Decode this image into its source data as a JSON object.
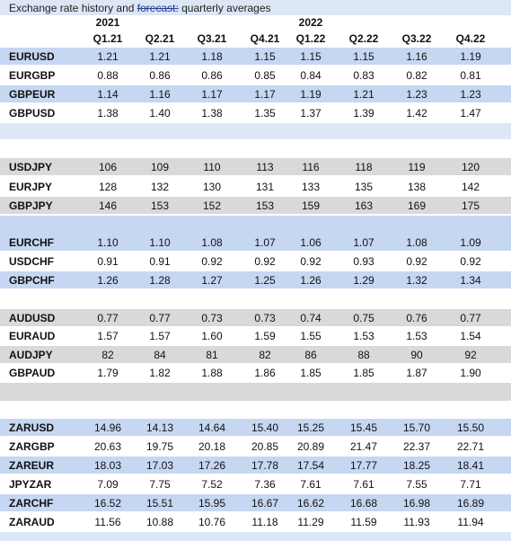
{
  "title": {
    "pre": "Exchange rate history and ",
    "strike": "forecast:",
    "post": " quarterly averages"
  },
  "header": {
    "year_2021": "2021",
    "year_2022": "2022",
    "quarters": [
      "Q1.21",
      "Q2.21",
      "Q3.21",
      "Q4.21",
      "Q1.22",
      "Q2.22",
      "Q3.22",
      "Q4.22"
    ]
  },
  "rows": [
    {
      "pair": "EURUSD",
      "values": [
        "1.21",
        "1.21",
        "1.18",
        "1.15",
        "1.15",
        "1.15",
        "1.16",
        "1.19"
      ]
    },
    {
      "pair": "EURGBP",
      "values": [
        "0.88",
        "0.86",
        "0.86",
        "0.85",
        "0.84",
        "0.83",
        "0.82",
        "0.81"
      ]
    },
    {
      "pair": "GBPEUR",
      "values": [
        "1.14",
        "1.16",
        "1.17",
        "1.17",
        "1.19",
        "1.21",
        "1.23",
        "1.23"
      ]
    },
    {
      "pair": "GBPUSD",
      "values": [
        "1.38",
        "1.40",
        "1.38",
        "1.35",
        "1.37",
        "1.39",
        "1.42",
        "1.47"
      ]
    },
    {
      "pair": "USDJPY",
      "values": [
        "106",
        "109",
        "110",
        "113",
        "116",
        "118",
        "119",
        "120"
      ]
    },
    {
      "pair": "EURJPY",
      "values": [
        "128",
        "132",
        "130",
        "131",
        "133",
        "135",
        "138",
        "142"
      ]
    },
    {
      "pair": "GBPJPY",
      "values": [
        "146",
        "153",
        "152",
        "153",
        "159",
        "163",
        "169",
        "175"
      ]
    },
    {
      "pair": "EURCHF",
      "values": [
        "1.10",
        "1.10",
        "1.08",
        "1.07",
        "1.06",
        "1.07",
        "1.08",
        "1.09"
      ]
    },
    {
      "pair": "USDCHF",
      "values": [
        "0.91",
        "0.91",
        "0.92",
        "0.92",
        "0.92",
        "0.93",
        "0.92",
        "0.92"
      ]
    },
    {
      "pair": "GBPCHF",
      "values": [
        "1.26",
        "1.28",
        "1.27",
        "1.25",
        "1.26",
        "1.29",
        "1.32",
        "1.34"
      ]
    },
    {
      "pair": "AUDUSD",
      "values": [
        "0.77",
        "0.77",
        "0.73",
        "0.73",
        "0.74",
        "0.75",
        "0.76",
        "0.77"
      ]
    },
    {
      "pair": "EURAUD",
      "values": [
        "1.57",
        "1.57",
        "1.60",
        "1.59",
        "1.55",
        "1.53",
        "1.53",
        "1.54"
      ]
    },
    {
      "pair": "AUDJPY",
      "values": [
        "82",
        "84",
        "81",
        "82",
        "86",
        "88",
        "90",
        "92"
      ]
    },
    {
      "pair": "GBPAUD",
      "values": [
        "1.79",
        "1.82",
        "1.88",
        "1.86",
        "1.85",
        "1.85",
        "1.87",
        "1.90"
      ]
    },
    {
      "pair": "ZARUSD",
      "values": [
        "14.96",
        "14.13",
        "14.64",
        "15.40",
        "15.25",
        "15.45",
        "15.70",
        "15.50"
      ]
    },
    {
      "pair": "ZARGBP",
      "values": [
        "20.63",
        "19.75",
        "20.18",
        "20.85",
        "20.89",
        "21.47",
        "22.37",
        "22.71"
      ]
    },
    {
      "pair": "ZAREUR",
      "values": [
        "18.03",
        "17.03",
        "17.26",
        "17.78",
        "17.54",
        "17.77",
        "18.25",
        "18.41"
      ]
    },
    {
      "pair": "JPYZAR",
      "values": [
        "7.09",
        "7.75",
        "7.52",
        "7.36",
        "7.61",
        "7.61",
        "7.55",
        "7.71"
      ]
    },
    {
      "pair": "ZARCHF",
      "values": [
        "16.52",
        "15.51",
        "15.95",
        "16.67",
        "16.62",
        "16.68",
        "16.98",
        "16.89"
      ]
    },
    {
      "pair": "ZARAUD",
      "values": [
        "11.56",
        "10.88",
        "10.76",
        "11.18",
        "11.29",
        "11.59",
        "11.93",
        "11.94"
      ]
    }
  ],
  "colors": {
    "band_blue": "#c6d7f2",
    "band_gray": "#d9d9d9",
    "title_bg": "#dce6f5"
  }
}
